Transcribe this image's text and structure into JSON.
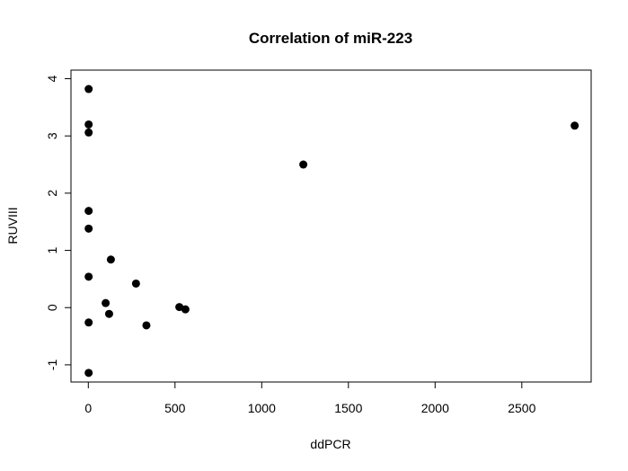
{
  "chart_data": {
    "type": "scatter",
    "title": "Correlation of miR-223",
    "xlabel": "ddPCR",
    "ylabel": "RUVIII",
    "xlim": [
      -100,
      2900
    ],
    "ylim": [
      -1.3,
      4.15
    ],
    "x_ticks": [
      0,
      500,
      1000,
      1500,
      2000,
      2500
    ],
    "x_tick_labels": [
      "0",
      "500",
      "1000",
      "1500",
      "2000",
      "2500"
    ],
    "y_ticks": [
      -1,
      0,
      1,
      2,
      3,
      4
    ],
    "y_tick_labels": [
      "-1",
      "0",
      "1",
      "2",
      "3",
      "4"
    ],
    "grid": false,
    "legend": "none",
    "point_color": "#000000",
    "points": [
      {
        "x": 2,
        "y": 3.82
      },
      {
        "x": 2,
        "y": 3.2
      },
      {
        "x": 2,
        "y": 3.06
      },
      {
        "x": 2,
        "y": 1.69
      },
      {
        "x": 2,
        "y": 1.38
      },
      {
        "x": 2,
        "y": 0.54
      },
      {
        "x": 2,
        "y": -0.26
      },
      {
        "x": 2,
        "y": -1.14
      },
      {
        "x": 100,
        "y": 0.08
      },
      {
        "x": 120,
        "y": -0.11
      },
      {
        "x": 130,
        "y": 0.84
      },
      {
        "x": 275,
        "y": 0.42
      },
      {
        "x": 335,
        "y": -0.31
      },
      {
        "x": 525,
        "y": 0.01
      },
      {
        "x": 560,
        "y": -0.03
      },
      {
        "x": 1240,
        "y": 2.5
      },
      {
        "x": 2805,
        "y": 3.18
      }
    ]
  }
}
